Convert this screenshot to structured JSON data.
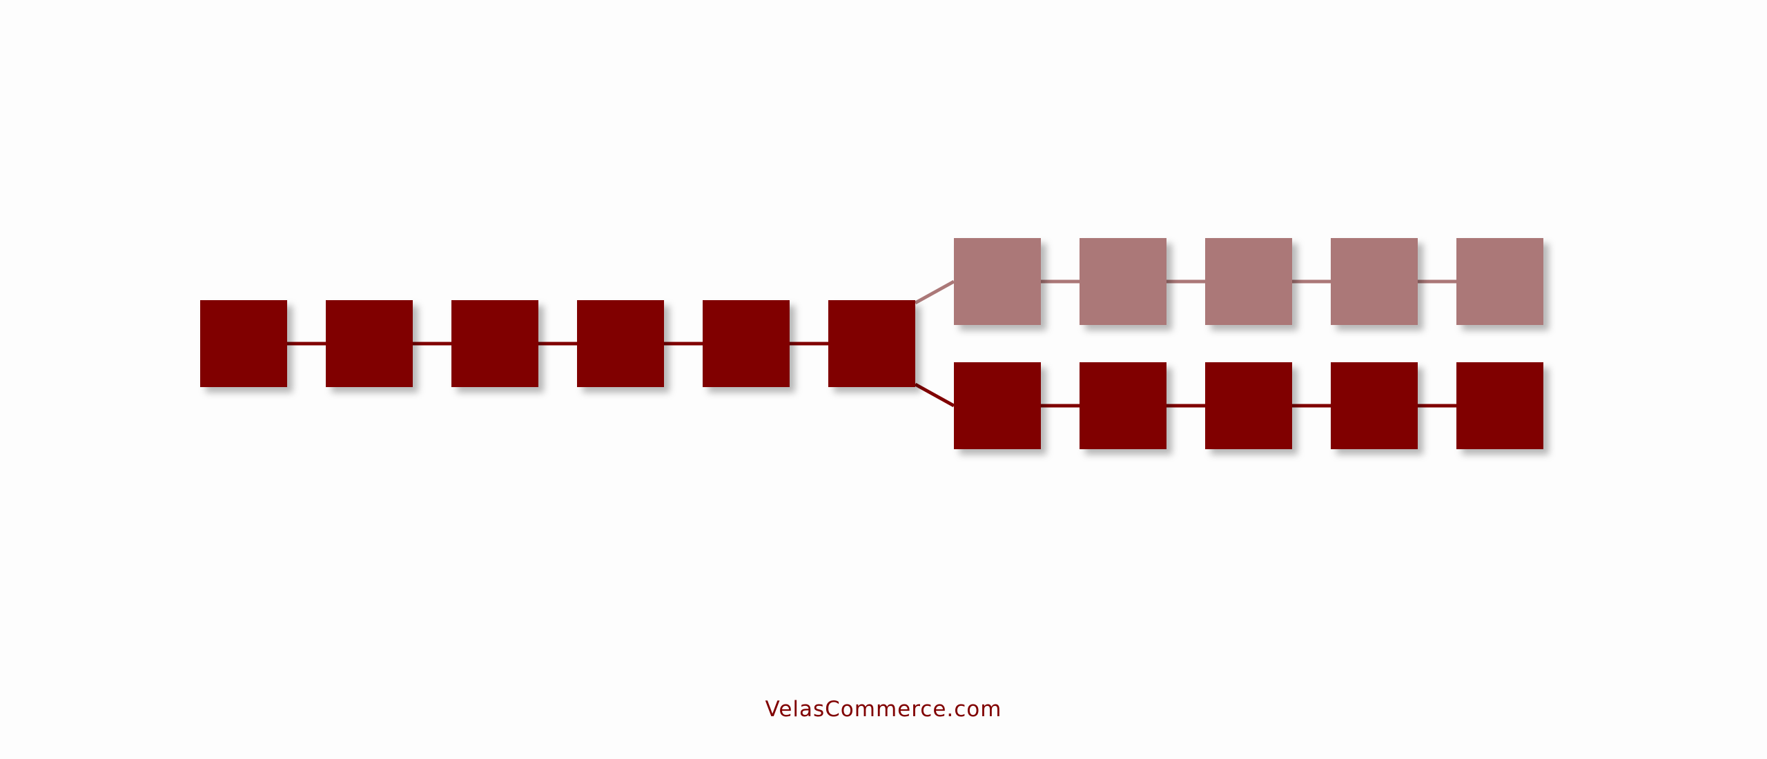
{
  "diagram": {
    "type": "blockchain-fork",
    "main_chain_block_count": 6,
    "fork_upper_block_count": 5,
    "fork_lower_block_count": 5,
    "colors": {
      "main": "#800000",
      "faded": "#ab7878",
      "background": "#fdfdfd"
    }
  },
  "footer": {
    "site": "VelasCommerce.com"
  }
}
